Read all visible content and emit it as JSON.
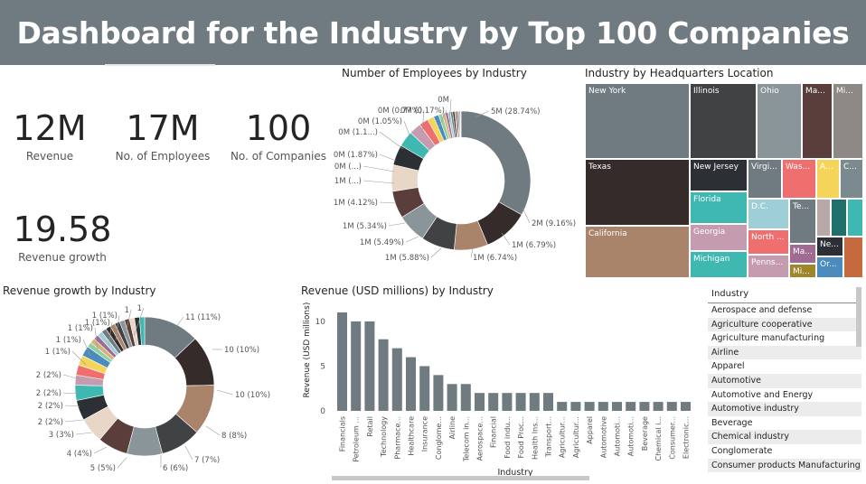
{
  "header": {
    "title": "Dashboard for the Industry by Top 100 Companies"
  },
  "kpis": {
    "revenue": {
      "value": "12M",
      "label": "Revenue"
    },
    "employees": {
      "value": "17M",
      "label": "No. of Employees"
    },
    "companies": {
      "value": "100",
      "label": "No. of Companies"
    },
    "growth": {
      "value": "19.58",
      "label": "Revenue growth"
    }
  },
  "employees_donut": {
    "title": "Number of Employees by Industry",
    "labels": [
      "5M (28.74%)",
      "2M (9.16%)",
      "1M (6.79%)",
      "1M (6.74%)",
      "1M (5.88%)",
      "1M (5.49%)",
      "1M (5.34%)",
      "1M (4.12%)",
      "1M (...)",
      "0M (...)",
      "0M (1.87%)",
      "0M (1.1...)",
      "0M (1.05%)",
      "0M (0.77%)",
      "0M (0.17%)",
      "0M"
    ]
  },
  "treemap": {
    "title": "Industry by Headquarters Location",
    "cells": [
      "New York",
      "Illinois",
      "Ohio",
      "Ma...",
      "Mi...",
      "Texas",
      "New Jersey",
      "Virgi...",
      "Was...",
      "A...",
      "C...",
      "Florida",
      "D.C.",
      "Te...",
      "Georgia",
      "North ...",
      "Ma...",
      "Ne...",
      "California",
      "Michigan",
      "Penns...",
      "Mi...",
      "Or..."
    ]
  },
  "growth_donut": {
    "title": "Revenue growth by Industry",
    "labels": [
      "11 (11%)",
      "10 (10%)",
      "10 (10%)",
      "8 (8%)",
      "7 (7%)",
      "6 (6%)",
      "5 (5%)",
      "4 (4%)",
      "3 (3%)",
      "2 (2%)",
      "2 (2%)",
      "2 (2%)",
      "2 (2%)",
      "1 (1%)",
      "1 (1%)",
      "1 (1%)",
      "1 (1%)",
      "1 (1%)",
      "1",
      "1"
    ]
  },
  "slicer": {
    "header": "Industry",
    "items": [
      "Aerospace and defense",
      "Agriculture cooperative",
      "Agriculture manufacturing",
      "Airline",
      "Apparel",
      "Automotive",
      "Automotive and Energy",
      "Automotive industry",
      "Beverage",
      "Chemical industry",
      "Conglomerate",
      "Consumer products Manufacturing"
    ]
  },
  "colors": {
    "header_bg": "#6f7b80",
    "bar": "#6f7b80",
    "palette": [
      "#6f7b80",
      "#362b2b",
      "#a9836a",
      "#414244",
      "#8a9599",
      "#5a3e3b",
      "#e8d6c6",
      "#2c2f33",
      "#3fb8b2",
      "#c59bb0",
      "#ef6f6f",
      "#f5d45a",
      "#4b8bbe",
      "#8fd19e",
      "#d4b07a",
      "#a06a92",
      "#9ecfd6"
    ]
  },
  "chart_data": [
    {
      "type": "bar",
      "title": "Revenue (USD millions) by Industry",
      "xlabel": "Industry",
      "ylabel": "Revenue (USD millions)",
      "ylim": [
        0,
        11
      ],
      "yticks": [
        0,
        5,
        10
      ],
      "grid": false,
      "categories": [
        "Financials",
        "Petroleum ...",
        "Retail",
        "Technology",
        "Pharmace...",
        "Healthcare",
        "Insurance",
        "Conglome...",
        "Airline",
        "Telecom in...",
        "Aerospace...",
        "Financial",
        "Food indu...",
        "Food Proc...",
        "Health Ins...",
        "Transport...",
        "Agricultur...",
        "Agricultur...",
        "Apparel",
        "Automotive",
        "Automoti...",
        "Automoti...",
        "Beverage",
        "Chemical i...",
        "Consumer...",
        "Electronic..."
      ],
      "values": [
        11,
        10,
        10,
        8,
        7,
        6,
        5,
        4,
        3,
        3,
        2,
        2,
        2,
        2,
        2,
        2,
        1,
        1,
        1,
        1,
        1,
        1,
        1,
        1,
        1,
        1
      ]
    },
    {
      "type": "pie",
      "title": "Number of Employees by Industry",
      "series": [
        {
          "values": [
            28.74,
            9.16,
            6.79,
            6.74,
            5.88,
            5.49,
            5.34,
            4.12,
            3.2,
            2.4,
            1.87,
            1.3,
            1.05,
            0.77,
            0.6,
            0.55,
            0.5,
            0.45,
            0.4,
            0.35,
            0.3,
            0.25,
            0.2,
            0.17
          ]
        }
      ]
    },
    {
      "type": "pie",
      "title": "Revenue growth by Industry",
      "series": [
        {
          "values": [
            11,
            10,
            10,
            8,
            7,
            6,
            5,
            4,
            3,
            2,
            2,
            2,
            2,
            1,
            1,
            1,
            1,
            1,
            1,
            1,
            1,
            1,
            1,
            1,
            1,
            1
          ]
        }
      ]
    }
  ]
}
